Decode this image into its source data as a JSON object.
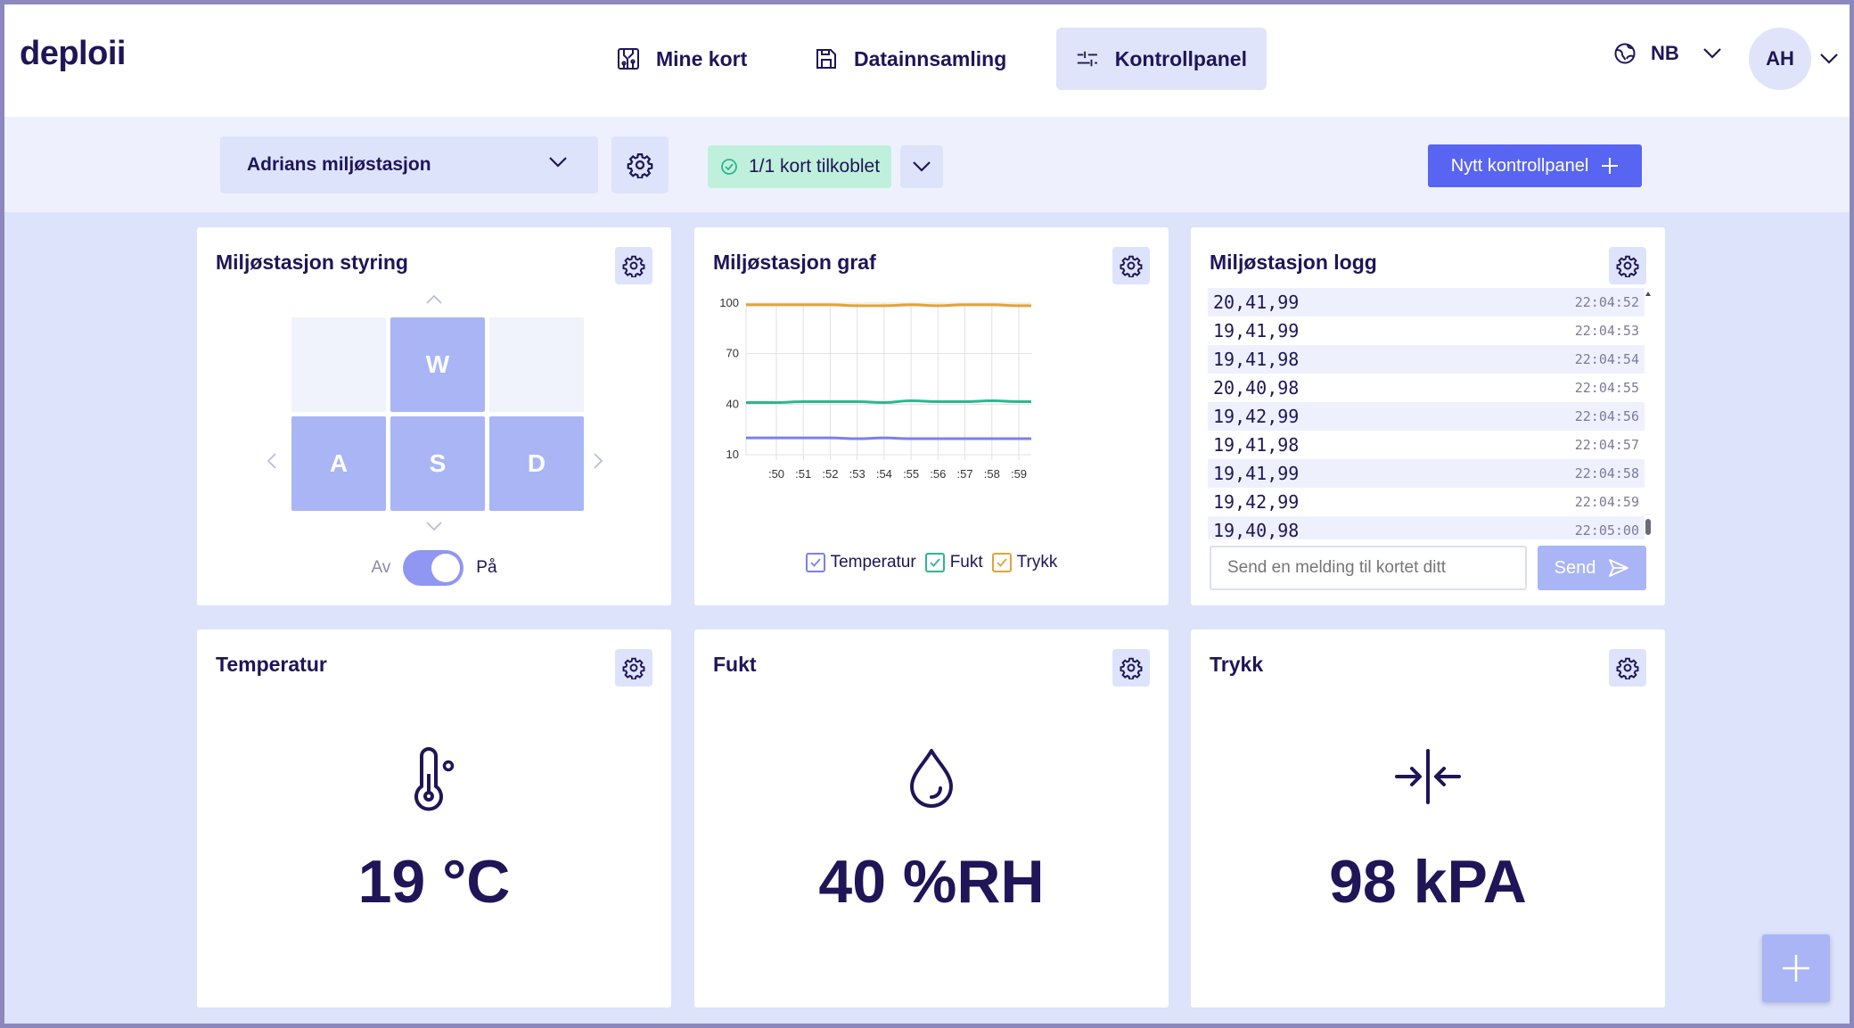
{
  "app": {
    "logo": "deploii"
  },
  "nav": [
    {
      "label": "Mine kort",
      "icon": "circuit-board-icon"
    },
    {
      "label": "Datainnsamling",
      "icon": "save-icon"
    },
    {
      "label": "Kontrollpanel",
      "icon": "sliders-icon",
      "active": true
    }
  ],
  "language": {
    "label": "NB",
    "icon": "globe-icon"
  },
  "user": {
    "initials": "AH"
  },
  "toolbar": {
    "station": "Adrians miljøstasjon",
    "status": "1/1 kort tilkoblet",
    "new_panel": "Nytt kontrollpanel"
  },
  "control": {
    "title": "Miljøstasjon styring",
    "keys": {
      "w": "W",
      "a": "A",
      "s": "S",
      "d": "D"
    },
    "toggle_off": "Av",
    "toggle_on": "På",
    "toggle_state": true
  },
  "graph": {
    "title": "Miljøstasjon graf",
    "legend": [
      "Temperatur",
      "Fukt",
      "Trykk"
    ]
  },
  "chart_data": {
    "type": "line",
    "title": "Miljøstasjon graf",
    "x": [
      ":50",
      ":51",
      ":52",
      ":53",
      ":54",
      ":55",
      ":56",
      ":57",
      ":58",
      ":59"
    ],
    "yticks": [
      100,
      70,
      40,
      10
    ],
    "ylim": [
      10,
      100
    ],
    "grid": true,
    "legend_position": "bottom",
    "series": [
      {
        "name": "Temperatur",
        "color": "#7b7ff0",
        "values": [
          20,
          20,
          20,
          19.5,
          20,
          19.5,
          19.5,
          19.5,
          19.5,
          19.5
        ]
      },
      {
        "name": "Fukt",
        "color": "#2fb58f",
        "values": [
          41,
          41.5,
          41.5,
          41.5,
          41,
          42,
          41.5,
          41.5,
          42,
          41.5
        ]
      },
      {
        "name": "Trykk",
        "color": "#e3a33a",
        "values": [
          99,
          99,
          99,
          98.5,
          98.5,
          99,
          98.5,
          99,
          99,
          98.5
        ]
      }
    ]
  },
  "log": {
    "title": "Miljøstasjon logg",
    "rows": [
      {
        "value": "20,41,99",
        "time": "22:04:52"
      },
      {
        "value": "19,41,99",
        "time": "22:04:53"
      },
      {
        "value": "19,41,98",
        "time": "22:04:54"
      },
      {
        "value": "20,40,98",
        "time": "22:04:55"
      },
      {
        "value": "19,42,99",
        "time": "22:04:56"
      },
      {
        "value": "19,41,98",
        "time": "22:04:57"
      },
      {
        "value": "19,41,99",
        "time": "22:04:58"
      },
      {
        "value": "19,42,99",
        "time": "22:04:59"
      },
      {
        "value": "19,40,98",
        "time": "22:05:00"
      }
    ],
    "placeholder": "Send en melding til kortet ditt",
    "send": "Send"
  },
  "temperature": {
    "title": "Temperatur",
    "value": "19 °C",
    "icon": "thermometer-icon"
  },
  "humidity": {
    "title": "Fukt",
    "value": "40 %RH",
    "icon": "droplet-icon"
  },
  "pressure": {
    "title": "Trykk",
    "value": "98 kPA",
    "icon": "pressure-arrows-icon"
  },
  "colors": {
    "accent": "#5865f2",
    "accent_light": "#aab5f5",
    "text": "#1f1557",
    "background": "#dde3fb",
    "connected": "#bff0dc"
  }
}
